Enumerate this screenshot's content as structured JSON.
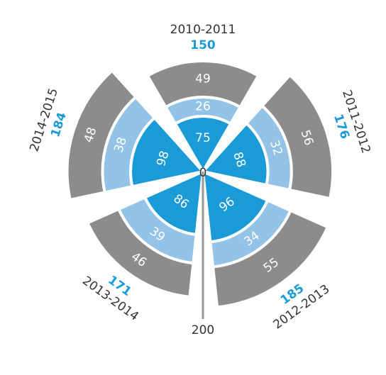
{
  "chart_data": {
    "type": "polar-stacked-bar",
    "categories": [
      "2010-2011",
      "2011-2012",
      "2012-2013",
      "2013-2014",
      "2014-2015"
    ],
    "series": [
      {
        "color": "#1a9ad6",
        "values": [
          75,
          88,
          96,
          86,
          98
        ]
      },
      {
        "color": "#93c4e8",
        "values": [
          26,
          32,
          34,
          39,
          38
        ]
      },
      {
        "color": "#8c8c8c",
        "values": [
          49,
          56,
          55,
          46,
          48
        ]
      }
    ],
    "totals": [
      150,
      176,
      185,
      171,
      184
    ],
    "totals_color": "#1a9ad6",
    "ylim": [
      0,
      200
    ],
    "yticks": [
      0,
      200
    ]
  }
}
